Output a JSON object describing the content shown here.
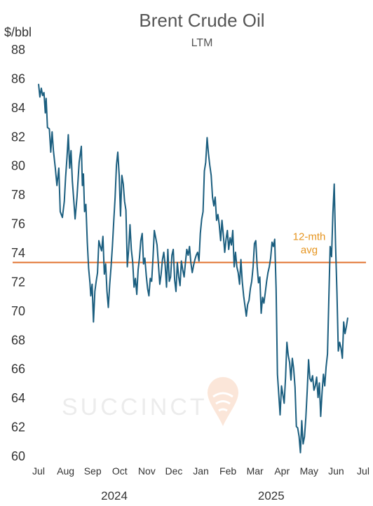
{
  "chart_data": {
    "type": "line",
    "title": "Brent Crude Oil",
    "subtitle": "LTM",
    "ylabel": "$/bbl",
    "ylim": [
      60,
      88
    ],
    "yticks": [
      60,
      62,
      64,
      66,
      68,
      70,
      72,
      74,
      76,
      78,
      80,
      82,
      84,
      86,
      88
    ],
    "xticks": [
      {
        "label": "Jul",
        "pos": 0
      },
      {
        "label": "Aug",
        "pos": 1
      },
      {
        "label": "Sep",
        "pos": 2
      },
      {
        "label": "Oct",
        "pos": 3
      },
      {
        "label": "Nov",
        "pos": 4
      },
      {
        "label": "Dec",
        "pos": 5
      },
      {
        "label": "Jan",
        "pos": 6
      },
      {
        "label": "Feb",
        "pos": 7
      },
      {
        "label": "Mar",
        "pos": 8
      },
      {
        "label": "Apr",
        "pos": 9
      },
      {
        "label": "May",
        "pos": 10
      },
      {
        "label": "Jun",
        "pos": 11
      },
      {
        "label": "Jul",
        "pos": 12
      }
    ],
    "year_labels": [
      {
        "label": "2024",
        "pos": 2.8
      },
      {
        "label": "2025",
        "pos": 8.6
      }
    ],
    "average": {
      "value": 73.3,
      "label_line1": "12-mth",
      "label_line2": "avg",
      "color": "#e2712e"
    },
    "line_color": "#1b5e7f",
    "grid": false,
    "watermark": "SUCCINCT",
    "series": [
      {
        "points": [
          [
            0.0,
            85.6
          ],
          [
            0.05,
            84.7
          ],
          [
            0.1,
            85.3
          ],
          [
            0.15,
            84.8
          ],
          [
            0.2,
            85.0
          ],
          [
            0.25,
            83.6
          ],
          [
            0.28,
            84.6
          ],
          [
            0.33,
            82.6
          ],
          [
            0.4,
            82.5
          ],
          [
            0.45,
            80.9
          ],
          [
            0.5,
            82.3
          ],
          [
            0.55,
            81.0
          ],
          [
            0.62,
            79.8
          ],
          [
            0.68,
            78.6
          ],
          [
            0.75,
            79.8
          ],
          [
            0.8,
            76.8
          ],
          [
            0.88,
            76.4
          ],
          [
            0.95,
            77.5
          ],
          [
            1.0,
            79.2
          ],
          [
            1.05,
            80.5
          ],
          [
            1.1,
            82.1
          ],
          [
            1.15,
            79.8
          ],
          [
            1.2,
            81.0
          ],
          [
            1.25,
            78.9
          ],
          [
            1.3,
            77.6
          ],
          [
            1.35,
            76.3
          ],
          [
            1.42,
            77.8
          ],
          [
            1.5,
            80.2
          ],
          [
            1.58,
            81.3
          ],
          [
            1.62,
            78.6
          ],
          [
            1.66,
            79.4
          ],
          [
            1.7,
            76.8
          ],
          [
            1.75,
            77.3
          ],
          [
            1.8,
            74.7
          ],
          [
            1.85,
            72.9
          ],
          [
            1.9,
            71.9
          ],
          [
            1.93,
            71.0
          ],
          [
            1.98,
            71.8
          ],
          [
            2.03,
            69.2
          ],
          [
            2.08,
            71.3
          ],
          [
            2.13,
            72.0
          ],
          [
            2.18,
            72.6
          ],
          [
            2.23,
            74.8
          ],
          [
            2.28,
            74.4
          ],
          [
            2.33,
            74.1
          ],
          [
            2.38,
            75.1
          ],
          [
            2.43,
            72.5
          ],
          [
            2.48,
            73.2
          ],
          [
            2.53,
            71.3
          ],
          [
            2.58,
            70.2
          ],
          [
            2.63,
            71.8
          ],
          [
            2.68,
            73.0
          ],
          [
            2.73,
            74.4
          ],
          [
            2.78,
            76.2
          ],
          [
            2.83,
            77.8
          ],
          [
            2.88,
            80.0
          ],
          [
            2.93,
            80.9
          ],
          [
            2.98,
            79.3
          ],
          [
            3.03,
            76.5
          ],
          [
            3.08,
            79.3
          ],
          [
            3.13,
            78.7
          ],
          [
            3.18,
            77.5
          ],
          [
            3.23,
            76.9
          ],
          [
            3.28,
            73.0
          ],
          [
            3.33,
            74.2
          ],
          [
            3.38,
            75.9
          ],
          [
            3.43,
            74.2
          ],
          [
            3.48,
            73.3
          ],
          [
            3.53,
            71.6
          ],
          [
            3.58,
            72.2
          ],
          [
            3.63,
            71.1
          ],
          [
            3.68,
            72.8
          ],
          [
            3.73,
            73.6
          ],
          [
            3.78,
            74.8
          ],
          [
            3.83,
            75.3
          ],
          [
            3.88,
            73.2
          ],
          [
            3.93,
            73.6
          ],
          [
            3.98,
            72.4
          ],
          [
            4.03,
            71.5
          ],
          [
            4.08,
            71.0
          ],
          [
            4.13,
            72.2
          ],
          [
            4.18,
            72.0
          ],
          [
            4.23,
            73.6
          ],
          [
            4.28,
            75.5
          ],
          [
            4.33,
            75.0
          ],
          [
            4.38,
            74.5
          ],
          [
            4.43,
            73.2
          ],
          [
            4.48,
            71.8
          ],
          [
            4.53,
            72.5
          ],
          [
            4.58,
            73.5
          ],
          [
            4.63,
            74.0
          ],
          [
            4.68,
            73.1
          ],
          [
            4.73,
            71.6
          ],
          [
            4.78,
            74.2
          ],
          [
            4.83,
            72.0
          ],
          [
            4.88,
            72.3
          ],
          [
            4.93,
            73.8
          ],
          [
            4.98,
            74.2
          ],
          [
            5.03,
            72.1
          ],
          [
            5.08,
            71.3
          ],
          [
            5.13,
            73.3
          ],
          [
            5.18,
            72.3
          ],
          [
            5.23,
            71.7
          ],
          [
            5.28,
            73.4
          ],
          [
            5.33,
            72.8
          ],
          [
            5.38,
            72.3
          ],
          [
            5.43,
            73.3
          ],
          [
            5.48,
            74.2
          ],
          [
            5.53,
            73.8
          ],
          [
            5.58,
            74.4
          ],
          [
            5.63,
            73.3
          ],
          [
            5.68,
            72.6
          ],
          [
            5.73,
            73.1
          ],
          [
            5.78,
            73.5
          ],
          [
            5.83,
            73.8
          ],
          [
            5.88,
            74.0
          ],
          [
            5.93,
            73.4
          ],
          [
            5.98,
            75.3
          ],
          [
            6.03,
            76.3
          ],
          [
            6.08,
            76.8
          ],
          [
            6.13,
            79.6
          ],
          [
            6.18,
            80.2
          ],
          [
            6.23,
            81.9
          ],
          [
            6.28,
            80.8
          ],
          [
            6.33,
            80.0
          ],
          [
            6.38,
            79.3
          ],
          [
            6.43,
            77.8
          ],
          [
            6.48,
            77.2
          ],
          [
            6.53,
            77.8
          ],
          [
            6.58,
            76.2
          ],
          [
            6.63,
            76.6
          ],
          [
            6.68,
            75.9
          ],
          [
            6.73,
            74.8
          ],
          [
            6.78,
            76.2
          ],
          [
            6.83,
            75.2
          ],
          [
            6.88,
            74.0
          ],
          [
            6.93,
            74.9
          ],
          [
            6.98,
            75.5
          ],
          [
            7.03,
            74.2
          ],
          [
            7.08,
            75.0
          ],
          [
            7.13,
            74.5
          ],
          [
            7.18,
            75.5
          ],
          [
            7.23,
            73.0
          ],
          [
            7.28,
            74.0
          ],
          [
            7.33,
            73.0
          ],
          [
            7.38,
            72.6
          ],
          [
            7.43,
            71.8
          ],
          [
            7.48,
            73.5
          ],
          [
            7.53,
            72.0
          ],
          [
            7.58,
            71.0
          ],
          [
            7.63,
            70.3
          ],
          [
            7.68,
            69.6
          ],
          [
            7.73,
            70.4
          ],
          [
            7.78,
            70.7
          ],
          [
            7.83,
            71.5
          ],
          [
            7.88,
            72.0
          ],
          [
            7.93,
            73.0
          ],
          [
            7.98,
            74.6
          ],
          [
            8.03,
            74.8
          ],
          [
            8.08,
            73.0
          ],
          [
            8.13,
            71.9
          ],
          [
            8.18,
            72.3
          ],
          [
            8.23,
            69.8
          ],
          [
            8.28,
            70.9
          ],
          [
            8.33,
            70.5
          ],
          [
            8.38,
            71.2
          ],
          [
            8.43,
            72.0
          ],
          [
            8.48,
            72.6
          ],
          [
            8.53,
            73.0
          ],
          [
            8.58,
            73.6
          ],
          [
            8.63,
            74.7
          ],
          [
            8.68,
            74.4
          ],
          [
            8.73,
            74.9
          ],
          [
            8.78,
            71.5
          ],
          [
            8.83,
            65.6
          ],
          [
            8.88,
            64.2
          ],
          [
            8.93,
            62.8
          ],
          [
            8.98,
            64.8
          ],
          [
            9.03,
            64.2
          ],
          [
            9.08,
            63.6
          ],
          [
            9.13,
            65.4
          ],
          [
            9.18,
            67.8
          ],
          [
            9.23,
            66.9
          ],
          [
            9.28,
            66.4
          ],
          [
            9.33,
            65.2
          ],
          [
            9.38,
            66.7
          ],
          [
            9.43,
            66.0
          ],
          [
            9.48,
            64.7
          ],
          [
            9.53,
            62.0
          ],
          [
            9.58,
            61.9
          ],
          [
            9.63,
            61.3
          ],
          [
            9.68,
            60.2
          ],
          [
            9.73,
            62.4
          ],
          [
            9.78,
            60.8
          ],
          [
            9.83,
            61.3
          ],
          [
            9.88,
            62.6
          ],
          [
            9.93,
            64.4
          ],
          [
            9.98,
            66.6
          ],
          [
            10.03,
            65.3
          ],
          [
            10.08,
            65.1
          ],
          [
            10.13,
            65.5
          ],
          [
            10.18,
            64.5
          ],
          [
            10.23,
            64.8
          ],
          [
            10.28,
            65.4
          ],
          [
            10.33,
            64.0
          ],
          [
            10.38,
            65.0
          ],
          [
            10.43,
            62.7
          ],
          [
            10.48,
            64.4
          ],
          [
            10.53,
            65.6
          ],
          [
            10.58,
            64.8
          ],
          [
            10.63,
            66.1
          ],
          [
            10.68,
            67.0
          ],
          [
            10.73,
            70.8
          ],
          [
            10.78,
            74.4
          ],
          [
            10.83,
            73.7
          ],
          [
            10.88,
            76.7
          ],
          [
            10.93,
            78.7
          ],
          [
            10.98,
            74.5
          ],
          [
            11.03,
            71.2
          ],
          [
            11.08,
            67.2
          ],
          [
            11.13,
            67.8
          ],
          [
            11.18,
            67.4
          ],
          [
            11.23,
            66.7
          ],
          [
            11.28,
            69.2
          ],
          [
            11.33,
            68.4
          ],
          [
            11.38,
            68.9
          ],
          [
            11.43,
            69.5
          ]
        ]
      }
    ]
  }
}
